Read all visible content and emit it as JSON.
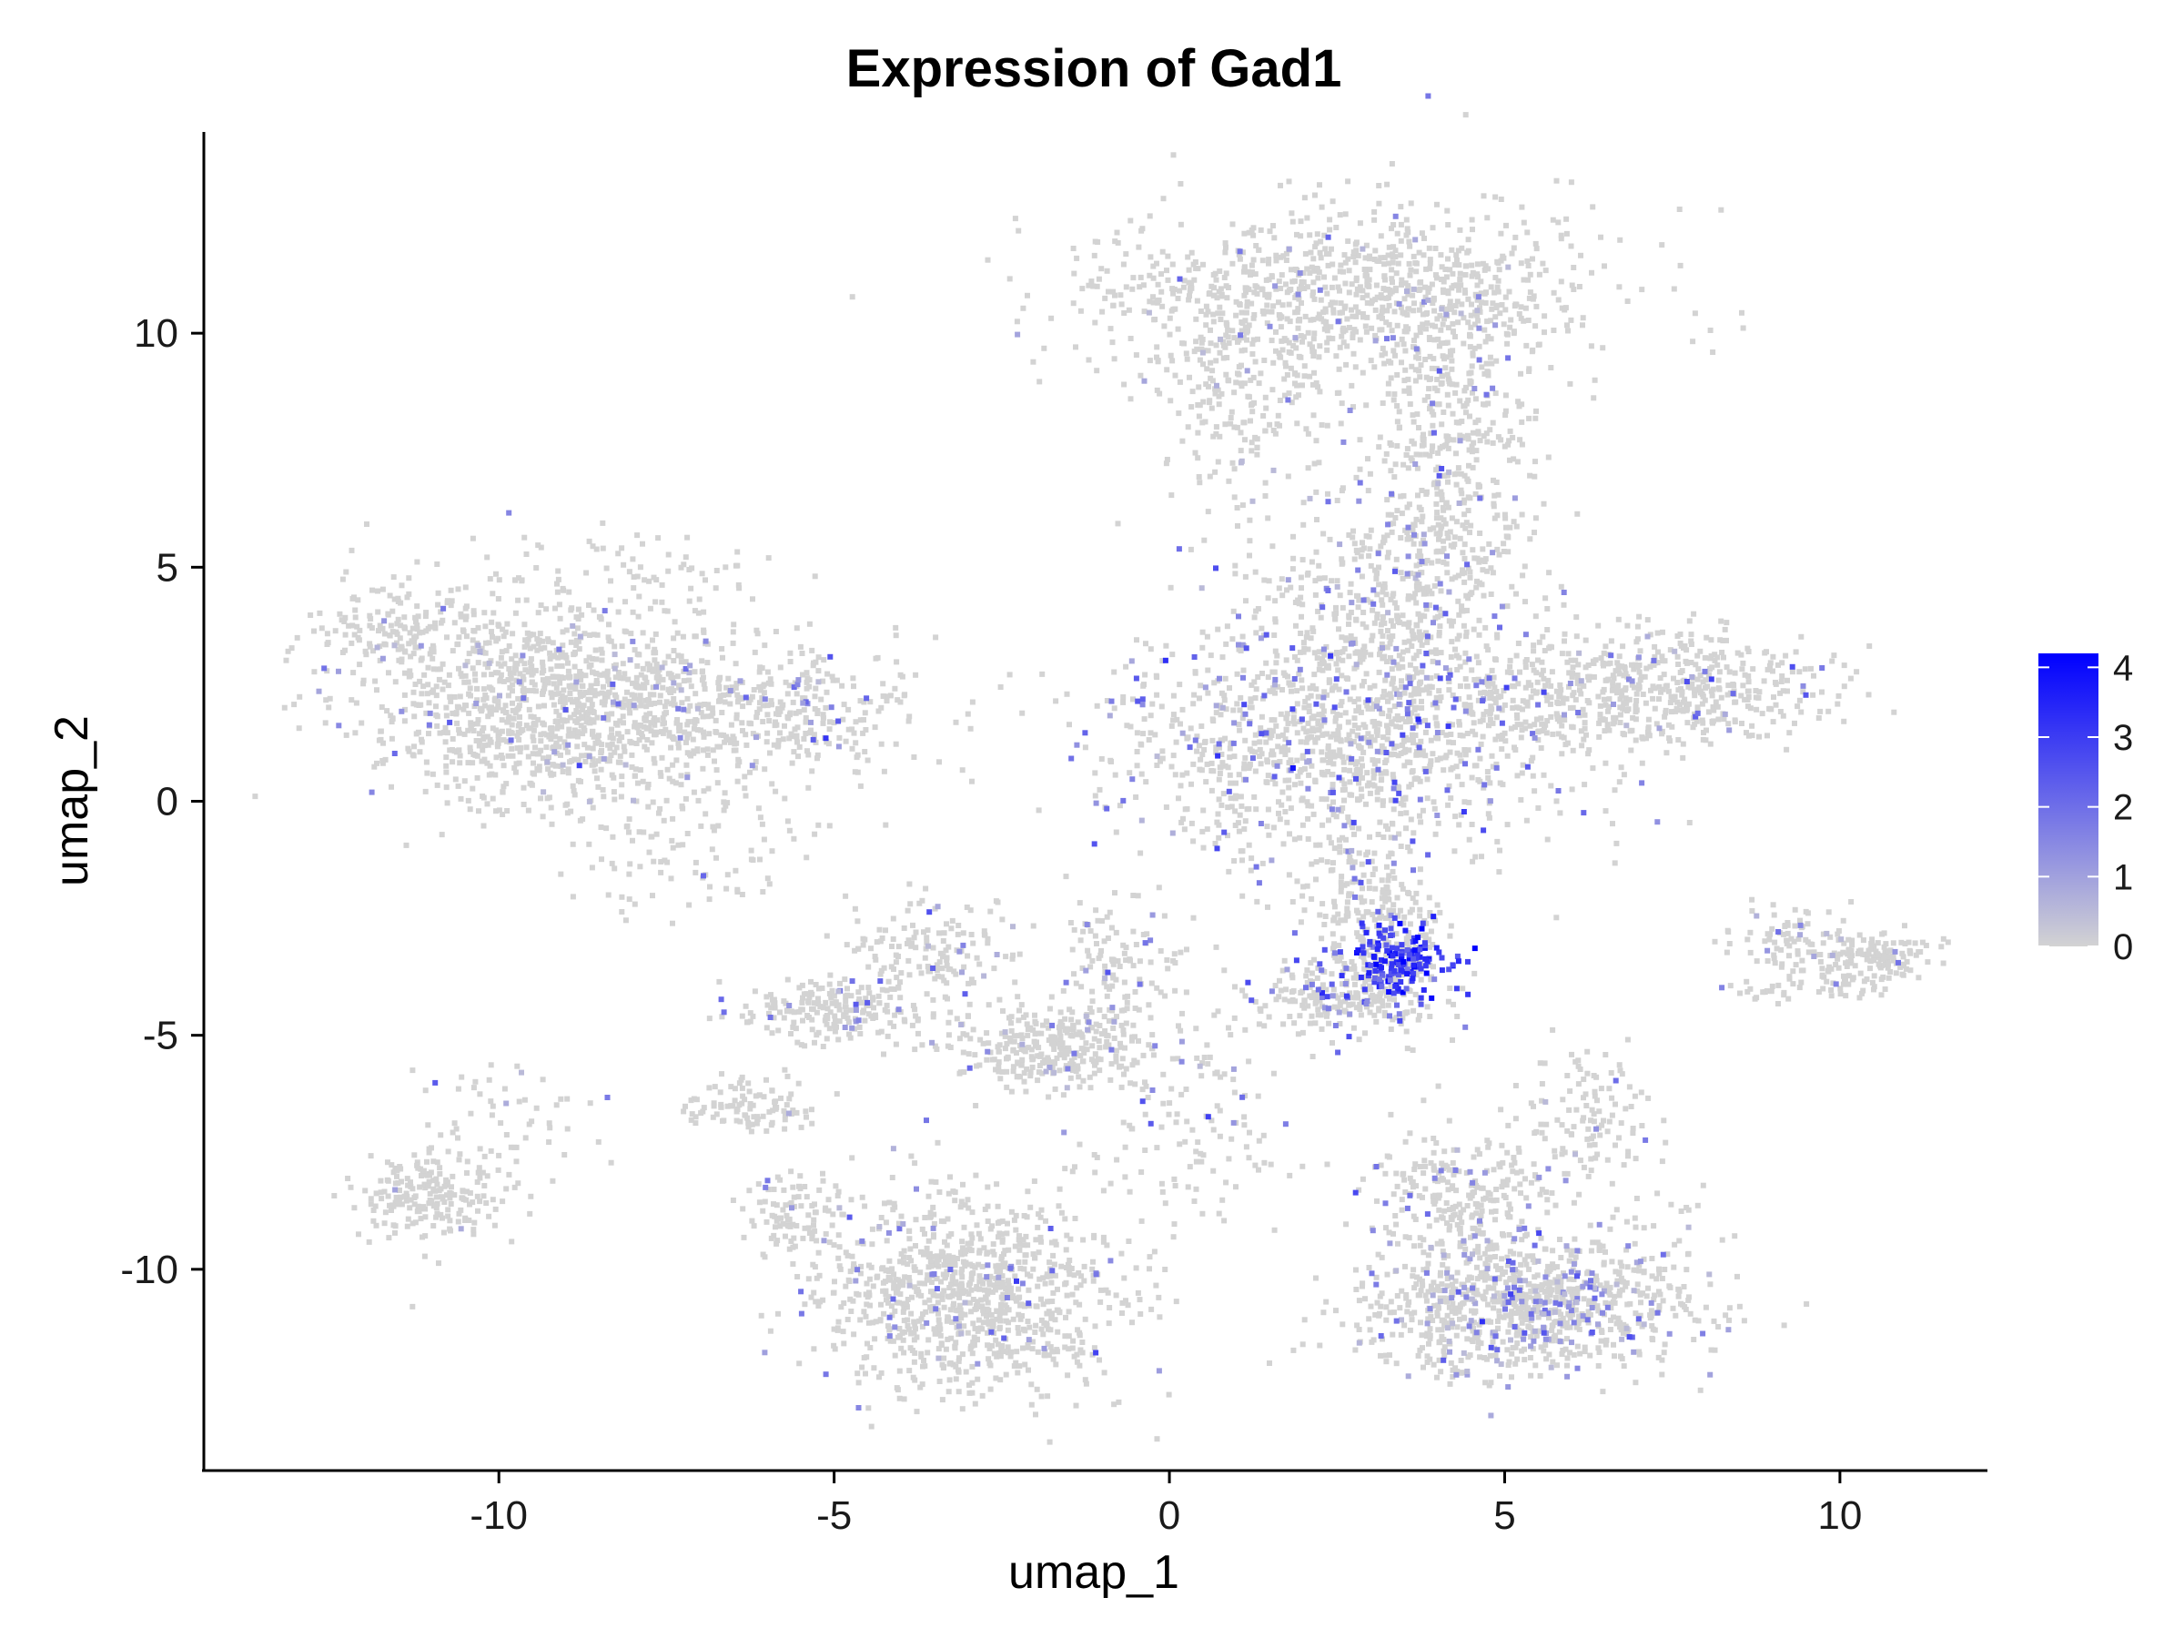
{
  "chart_data": {
    "type": "scatter",
    "title": "Expression of Gad1",
    "xlabel": "umap_1",
    "ylabel": "umap_2",
    "xlim": [
      -14.4,
      12.2
    ],
    "ylim": [
      -14.3,
      14.3
    ],
    "x_ticks": [
      -10,
      -5,
      0,
      5,
      10
    ],
    "y_ticks": [
      -10,
      -5,
      0,
      5,
      10
    ],
    "grid": false,
    "legend": {
      "placement": "right",
      "ticks": [
        0,
        1,
        2,
        3,
        4
      ],
      "min": 0,
      "max": 4.2,
      "low_color": "#d3d3d3",
      "high_color": "#0000ff"
    },
    "clusters": [
      {
        "cx": 2.6,
        "cy": 10.8,
        "sx": 2.0,
        "sy": 0.9,
        "n": 900,
        "expr_frac": 0.03,
        "expr_mean": 1.0
      },
      {
        "cx": 1.1,
        "cy": 8.6,
        "sx": 0.6,
        "sy": 1.2,
        "n": 200,
        "expr_frac": 0.05,
        "expr_mean": 1.2
      },
      {
        "cx": 4.2,
        "cy": 7.5,
        "sx": 0.6,
        "sy": 2.0,
        "n": 450,
        "expr_frac": 0.08,
        "expr_mean": 1.5
      },
      {
        "cx": 3.3,
        "cy": 4.2,
        "sx": 1.0,
        "sy": 1.5,
        "n": 450,
        "expr_frac": 0.08,
        "expr_mean": 1.5
      },
      {
        "cx": 2.6,
        "cy": 1.3,
        "sx": 1.7,
        "sy": 1.3,
        "n": 1200,
        "expr_frac": 0.14,
        "expr_mean": 1.8
      },
      {
        "cx": 3.0,
        "cy": -2.5,
        "sx": 0.5,
        "sy": 0.9,
        "n": 250,
        "expr_frac": 0.1,
        "expr_mean": 1.6
      },
      {
        "cx": 3.5,
        "cy": -3.4,
        "sx": 0.35,
        "sy": 0.35,
        "n": 200,
        "expr_frac": 0.75,
        "expr_mean": 3.2
      },
      {
        "cx": 2.6,
        "cy": -4.2,
        "sx": 0.7,
        "sy": 0.4,
        "n": 220,
        "expr_frac": 0.2,
        "expr_mean": 2.0
      },
      {
        "cx": 7.3,
        "cy": 2.4,
        "sx": 1.2,
        "sy": 0.6,
        "n": 550,
        "expr_frac": 0.05,
        "expr_mean": 1.3
      },
      {
        "cx": -9.0,
        "cy": 2.0,
        "sx": 1.5,
        "sy": 1.1,
        "n": 1200,
        "expr_frac": 0.04,
        "expr_mean": 1.2
      },
      {
        "cx": -11.5,
        "cy": 3.6,
        "sx": 0.6,
        "sy": 0.35,
        "n": 120,
        "expr_frac": 0.02,
        "expr_mean": 1.0
      },
      {
        "cx": -6.0,
        "cy": 1.8,
        "sx": 1.3,
        "sy": 0.7,
        "n": 320,
        "expr_frac": 0.1,
        "expr_mean": 1.6
      },
      {
        "cx": -9.0,
        "cy": 4.8,
        "sx": 1.5,
        "sy": 0.4,
        "n": 80,
        "expr_frac": 0.02,
        "expr_mean": 1.0
      },
      {
        "cx": -7.2,
        "cy": -1.0,
        "sx": 0.8,
        "sy": 0.8,
        "n": 100,
        "expr_frac": 0.08,
        "expr_mean": 1.5
      },
      {
        "cx": -11.0,
        "cy": -8.4,
        "sx": 0.5,
        "sy": 0.5,
        "n": 200,
        "expr_frac": 0.02,
        "expr_mean": 1.0
      },
      {
        "cx": -9.8,
        "cy": -7.0,
        "sx": 0.7,
        "sy": 0.9,
        "n": 60,
        "expr_frac": 0.05,
        "expr_mean": 1.3
      },
      {
        "cx": -5.0,
        "cy": -4.5,
        "sx": 0.7,
        "sy": 0.35,
        "n": 200,
        "expr_frac": 0.06,
        "expr_mean": 1.4
      },
      {
        "cx": -3.5,
        "cy": -3.2,
        "sx": 0.7,
        "sy": 0.6,
        "n": 150,
        "expr_frac": 0.06,
        "expr_mean": 1.4
      },
      {
        "cx": -1.7,
        "cy": -5.3,
        "sx": 0.75,
        "sy": 0.45,
        "n": 320,
        "expr_frac": 0.03,
        "expr_mean": 1.2
      },
      {
        "cx": -0.8,
        "cy": -3.5,
        "sx": 0.5,
        "sy": 0.8,
        "n": 120,
        "expr_frac": 0.08,
        "expr_mean": 1.5
      },
      {
        "cx": -3.0,
        "cy": -10.6,
        "sx": 1.1,
        "sy": 1.0,
        "n": 950,
        "expr_frac": 0.07,
        "expr_mean": 1.5
      },
      {
        "cx": -5.5,
        "cy": -8.8,
        "sx": 0.4,
        "sy": 0.4,
        "n": 100,
        "expr_frac": 0.04,
        "expr_mean": 1.2
      },
      {
        "cx": -6.3,
        "cy": -6.5,
        "sx": 0.5,
        "sy": 0.3,
        "n": 100,
        "expr_frac": 0.03,
        "expr_mean": 1.1
      },
      {
        "cx": 0.3,
        "cy": -7.0,
        "sx": 0.8,
        "sy": 1.0,
        "n": 120,
        "expr_frac": 0.1,
        "expr_mean": 1.6
      },
      {
        "cx": 5.2,
        "cy": -10.8,
        "sx": 1.2,
        "sy": 0.7,
        "n": 900,
        "expr_frac": 0.18,
        "expr_mean": 1.2
      },
      {
        "cx": 4.3,
        "cy": -8.4,
        "sx": 0.7,
        "sy": 0.7,
        "n": 250,
        "expr_frac": 0.1,
        "expr_mean": 1.4
      },
      {
        "cx": 6.1,
        "cy": -7.0,
        "sx": 0.5,
        "sy": 0.7,
        "n": 120,
        "expr_frac": 0.04,
        "expr_mean": 1.2
      },
      {
        "cx": 7.3,
        "cy": -9.8,
        "sx": 0.5,
        "sy": 1.0,
        "n": 60,
        "expr_frac": 0.05,
        "expr_mean": 1.3
      },
      {
        "cx": 10.5,
        "cy": -3.4,
        "sx": 0.4,
        "sy": 0.3,
        "n": 130,
        "expr_frac": 0.03,
        "expr_mean": 1.2
      },
      {
        "cx": 9.2,
        "cy": -3.0,
        "sx": 0.5,
        "sy": 0.35,
        "n": 80,
        "expr_frac": 0.08,
        "expr_mean": 1.4
      },
      {
        "cx": 9.6,
        "cy": -4.0,
        "sx": 0.6,
        "sy": 0.15,
        "n": 50,
        "expr_frac": 0.04,
        "expr_mean": 1.2
      }
    ]
  }
}
